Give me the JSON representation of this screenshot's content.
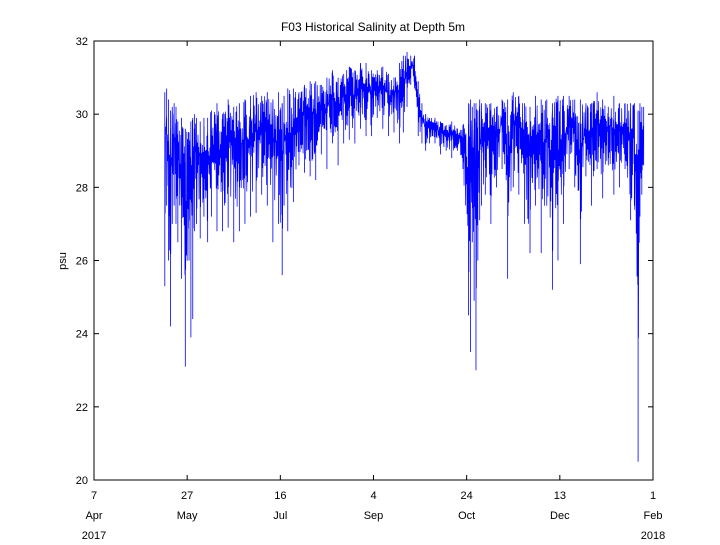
{
  "chart_data": {
    "type": "line",
    "title": "F03 Historical Salinity at Depth 5m",
    "ylabel": "psu",
    "xlabel": "",
    "ylim": [
      20,
      32
    ],
    "xlim": [
      "2017-04-07",
      "2018-02-01"
    ],
    "y_ticks": [
      20,
      22,
      24,
      26,
      28,
      30,
      32
    ],
    "x_ticks": [
      {
        "date": "2017-04-07",
        "day": "7",
        "month": "Apr",
        "year": "2017"
      },
      {
        "date": "2017-05-27",
        "day": "27",
        "month": "May",
        "year": ""
      },
      {
        "date": "2017-07-16",
        "day": "16",
        "month": "Jul",
        "year": ""
      },
      {
        "date": "2017-09-04",
        "day": "4",
        "month": "Sep",
        "year": ""
      },
      {
        "date": "2017-10-24",
        "day": "24",
        "month": "Oct",
        "year": ""
      },
      {
        "date": "2017-12-13",
        "day": "13",
        "month": "Dec",
        "year": ""
      },
      {
        "date": "2018-02-01",
        "day": "1",
        "month": "Feb",
        "year": "2018"
      }
    ],
    "grid": false,
    "line_color": "#0000ff",
    "series": [
      {
        "x": [
          "2017-05-15",
          "2017-05-16",
          "2017-05-17",
          "2017-05-18",
          "2017-05-19",
          "2017-05-20",
          "2017-05-21",
          "2017-05-22",
          "2017-05-24",
          "2017-05-26",
          "2017-05-28",
          "2017-05-29",
          "2017-05-30",
          "2017-05-31",
          "2017-06-01",
          "2017-06-03",
          "2017-06-05",
          "2017-06-07",
          "2017-06-09",
          "2017-06-12",
          "2017-06-15",
          "2017-06-18",
          "2017-06-21",
          "2017-06-24",
          "2017-06-27",
          "2017-06-30",
          "2017-07-03",
          "2017-07-06",
          "2017-07-09",
          "2017-07-12",
          "2017-07-15",
          "2017-07-17",
          "2017-07-18",
          "2017-07-20",
          "2017-07-23",
          "2017-07-26",
          "2017-07-29",
          "2017-08-01",
          "2017-08-04",
          "2017-08-07",
          "2017-08-10",
          "2017-08-13",
          "2017-08-16",
          "2017-08-19",
          "2017-08-22",
          "2017-08-25",
          "2017-08-28",
          "2017-08-31",
          "2017-09-03",
          "2017-09-06",
          "2017-09-09",
          "2017-09-12",
          "2017-09-15",
          "2017-09-18",
          "2017-09-20",
          "2017-09-22",
          "2017-09-24",
          "2017-09-26",
          "2017-09-28",
          "2017-09-30",
          "2017-10-02",
          "2017-10-04",
          "2017-10-07",
          "2017-10-10",
          "2017-10-13",
          "2017-10-16",
          "2017-10-19",
          "2017-10-22",
          "2017-10-25",
          "2017-10-26",
          "2017-10-27",
          "2017-10-28",
          "2017-10-29",
          "2017-10-30",
          "2017-10-31",
          "2017-11-01",
          "2017-11-03",
          "2017-11-06",
          "2017-11-09",
          "2017-11-12",
          "2017-11-15",
          "2017-11-18",
          "2017-11-21",
          "2017-11-24",
          "2017-11-27",
          "2017-11-30",
          "2017-12-03",
          "2017-12-06",
          "2017-12-09",
          "2017-12-12",
          "2017-12-15",
          "2017-12-18",
          "2017-12-21",
          "2017-12-24",
          "2017-12-27",
          "2017-12-30",
          "2018-01-02",
          "2018-01-05",
          "2018-01-08",
          "2018-01-11",
          "2018-01-14",
          "2018-01-17",
          "2018-01-20",
          "2018-01-22",
          "2018-01-24",
          "2018-01-25",
          "2018-01-26",
          "2018-01-27"
        ],
        "y_low": [
          25.3,
          27.5,
          26.0,
          24.2,
          27.0,
          27.5,
          27.0,
          26.5,
          25.5,
          23.1,
          26.0,
          23.9,
          24.4,
          26.8,
          27.0,
          26.6,
          27.2,
          26.5,
          27.2,
          26.8,
          26.8,
          26.9,
          26.5,
          26.8,
          27.0,
          27.2,
          27.3,
          27.8,
          27.5,
          26.5,
          27.0,
          25.6,
          27.5,
          26.8,
          27.6,
          28.6,
          28.4,
          28.3,
          28.2,
          28.9,
          28.5,
          29.2,
          28.6,
          29.2,
          29.3,
          29.2,
          29.6,
          29.4,
          29.4,
          29.9,
          29.6,
          29.4,
          29.5,
          29.2,
          29.5,
          30.2,
          30.8,
          30.7,
          29.4,
          29.2,
          29.0,
          29.2,
          29.2,
          28.9,
          29.0,
          28.8,
          29.0,
          28.5,
          24.5,
          23.5,
          26.5,
          24.9,
          23.0,
          26.0,
          27.1,
          27.5,
          27.8,
          27.0,
          28.0,
          28.5,
          25.5,
          28.0,
          27.8,
          27.0,
          26.2,
          27.5,
          26.2,
          27.5,
          25.2,
          26.0,
          27.0,
          28.5,
          28.0,
          25.9,
          28.3,
          27.5,
          28.5,
          27.7,
          28.6,
          27.8,
          28.0,
          28.5,
          27.1,
          27.5,
          20.5,
          27.2,
          27.8,
          28.6
        ],
        "y_high": [
          30.6,
          30.7,
          30.4,
          30.1,
          30.2,
          30.3,
          30.2,
          29.8,
          29.9,
          29.6,
          29.5,
          29.8,
          29.9,
          30.0,
          29.9,
          29.8,
          29.9,
          29.9,
          30.1,
          30.3,
          30.0,
          30.4,
          30.2,
          30.3,
          30.4,
          30.5,
          30.6,
          30.5,
          30.6,
          30.4,
          30.6,
          30.3,
          30.5,
          30.7,
          30.7,
          30.6,
          30.8,
          30.9,
          30.9,
          30.8,
          31.0,
          31.2,
          31.0,
          31.1,
          31.3,
          31.2,
          31.4,
          31.4,
          31.2,
          31.2,
          31.3,
          31.1,
          31.0,
          31.4,
          31.6,
          31.7,
          31.6,
          31.6,
          30.9,
          30.3,
          30.0,
          29.9,
          29.9,
          29.8,
          29.7,
          29.8,
          29.6,
          29.7,
          30.3,
          30.4,
          30.2,
          30.3,
          30.3,
          30.1,
          30.4,
          30.3,
          30.3,
          30.3,
          30.2,
          30.4,
          30.4,
          30.6,
          30.5,
          30.3,
          30.2,
          30.5,
          30.4,
          30.4,
          30.3,
          30.5,
          30.5,
          30.5,
          30.4,
          30.4,
          30.3,
          30.3,
          30.6,
          30.4,
          30.2,
          30.5,
          30.3,
          30.3,
          30.3,
          30.3,
          30.1,
          30.3,
          30.2,
          30.2
        ]
      }
    ]
  }
}
